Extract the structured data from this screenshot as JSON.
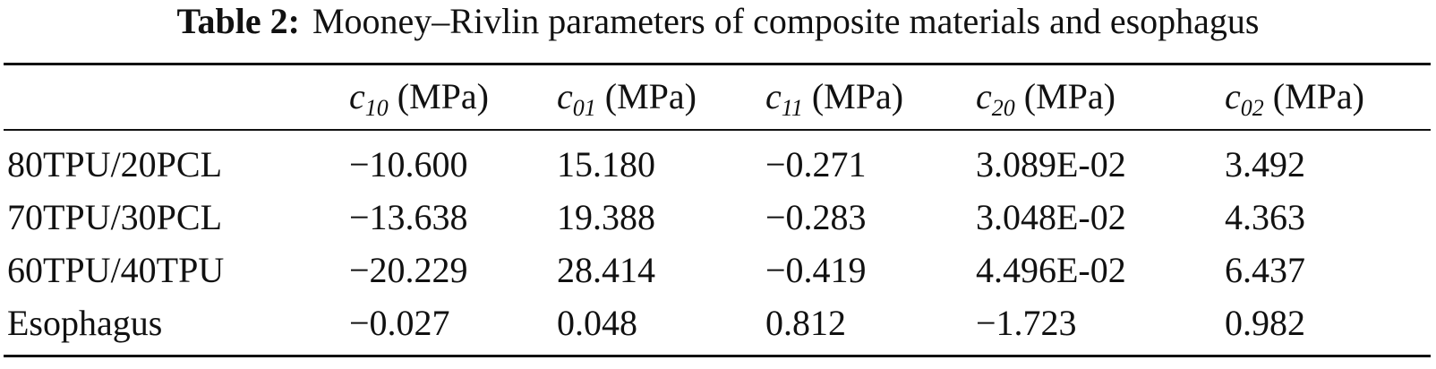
{
  "table": {
    "caption": {
      "label": "Table 2:",
      "text": "Mooney–Rivlin parameters of composite materials and esophagus"
    },
    "columns": [
      {
        "symbol": "c",
        "subscript": "10",
        "unit": "(MPa)"
      },
      {
        "symbol": "c",
        "subscript": "01",
        "unit": "(MPa)"
      },
      {
        "symbol": "c",
        "subscript": "11",
        "unit": "(MPa)"
      },
      {
        "symbol": "c",
        "subscript": "20",
        "unit": "(MPa)"
      },
      {
        "symbol": "c",
        "subscript": "02",
        "unit": "(MPa)"
      }
    ],
    "rows": [
      [
        "80TPU/20PCL",
        "−10.600",
        "15.180",
        "−0.271",
        "3.089E-02",
        "3.492"
      ],
      [
        "70TPU/30PCL",
        "−13.638",
        "19.388",
        "−0.283",
        "3.048E-02",
        "4.363"
      ],
      [
        "60TPU/40TPU",
        "−20.229",
        "28.414",
        "−0.419",
        "4.496E-02",
        "6.437"
      ],
      [
        "Esophagus",
        "−0.027",
        "0.048",
        "0.812",
        "−1.723",
        "0.982"
      ]
    ]
  }
}
